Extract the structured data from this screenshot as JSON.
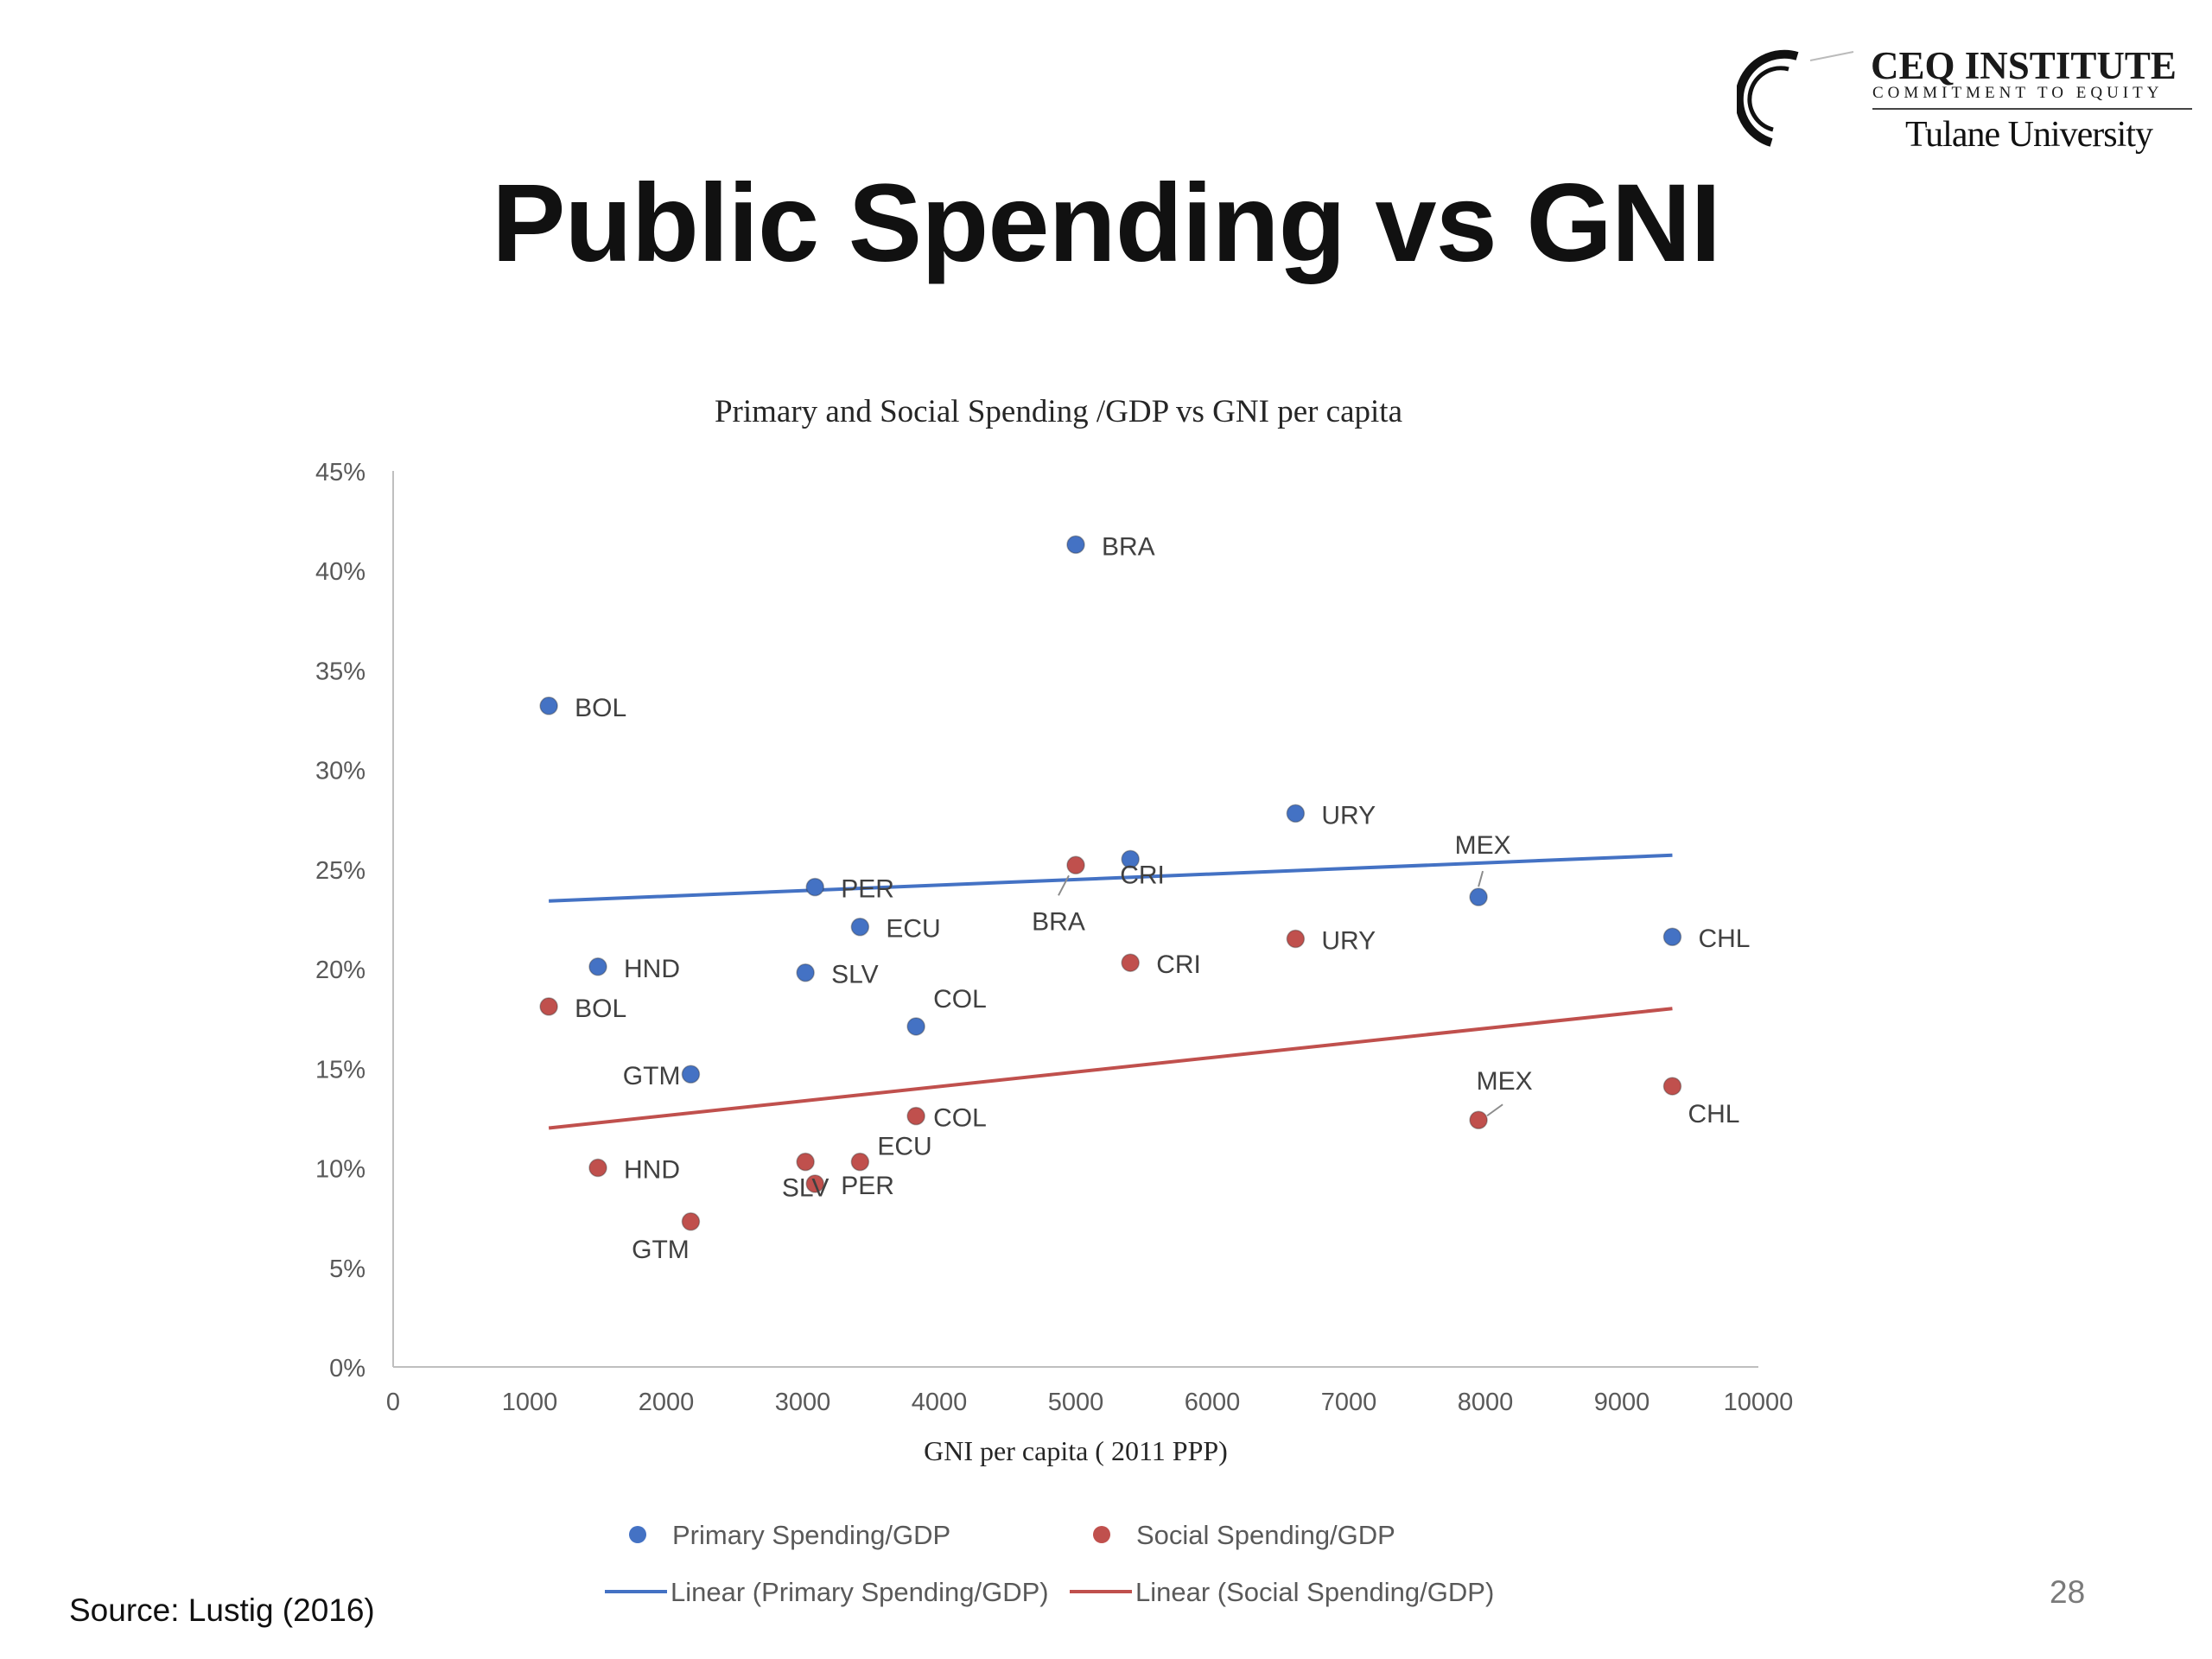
{
  "slide": {
    "title": "Public Spending vs GNI",
    "source": "Source: Lustig (2016)",
    "page_number": "28"
  },
  "logo": {
    "name": "CEQ INSTITUTE",
    "tagline": "COMMITMENT TO EQUITY",
    "university": "Tulane University"
  },
  "colors": {
    "primary": "#4472C4",
    "social": "#C0504D",
    "axis": "#BFBFBF",
    "tick_text": "#595959",
    "label_text": "#404040"
  },
  "chart_data": {
    "type": "scatter",
    "title": "Primary and Social Spending /GDP vs GNI per capita",
    "xlabel": "GNI per capita ( 2011 PPP)",
    "ylabel": "",
    "xlim": [
      0,
      10000
    ],
    "ylim": [
      0,
      0.45
    ],
    "x_ticks": [
      "0",
      "1000",
      "2000",
      "3000",
      "4000",
      "5000",
      "6000",
      "7000",
      "8000",
      "9000",
      "10000"
    ],
    "y_ticks": [
      "0%",
      "5%",
      "10%",
      "15%",
      "20%",
      "25%",
      "30%",
      "35%",
      "40%",
      "45%"
    ],
    "grid": false,
    "legend_position": "bottom",
    "series": [
      {
        "name": "Primary Spending/GDP",
        "points": [
          {
            "label": "BOL",
            "x": 1140,
            "y": 0.332
          },
          {
            "label": "HND",
            "x": 1500,
            "y": 0.201
          },
          {
            "label": "GTM",
            "x": 2180,
            "y": 0.147
          },
          {
            "label": "SLV",
            "x": 3020,
            "y": 0.198
          },
          {
            "label": "PER",
            "x": 3090,
            "y": 0.241
          },
          {
            "label": "ECU",
            "x": 3420,
            "y": 0.221
          },
          {
            "label": "COL",
            "x": 3830,
            "y": 0.171
          },
          {
            "label": "BRA",
            "x": 5000,
            "y": 0.413
          },
          {
            "label": "CRI",
            "x": 5400,
            "y": 0.255
          },
          {
            "label": "URY",
            "x": 6610,
            "y": 0.278
          },
          {
            "label": "MEX",
            "x": 7950,
            "y": 0.236
          },
          {
            "label": "CHL",
            "x": 9370,
            "y": 0.216
          }
        ]
      },
      {
        "name": "Social Spending/GDP",
        "points": [
          {
            "label": "BOL",
            "x": 1140,
            "y": 0.181
          },
          {
            "label": "HND",
            "x": 1500,
            "y": 0.1
          },
          {
            "label": "GTM",
            "x": 2180,
            "y": 0.073
          },
          {
            "label": "SLV",
            "x": 3020,
            "y": 0.103
          },
          {
            "label": "PER",
            "x": 3090,
            "y": 0.092
          },
          {
            "label": "ECU",
            "x": 3420,
            "y": 0.103
          },
          {
            "label": "COL",
            "x": 3830,
            "y": 0.126
          },
          {
            "label": "BRA",
            "x": 5000,
            "y": 0.252
          },
          {
            "label": "CRI",
            "x": 5400,
            "y": 0.203
          },
          {
            "label": "URY",
            "x": 6610,
            "y": 0.215
          },
          {
            "label": "MEX",
            "x": 7950,
            "y": 0.124
          },
          {
            "label": "CHL",
            "x": 9370,
            "y": 0.141
          }
        ]
      }
    ],
    "trendlines": [
      {
        "name": "Linear (Primary Spending/GDP)",
        "series": "Primary Spending/GDP",
        "x": [
          1140,
          9370
        ],
        "y": [
          0.234,
          0.257
        ]
      },
      {
        "name": "Linear (Social Spending/GDP)",
        "series": "Social Spending/GDP",
        "x": [
          1140,
          9370
        ],
        "y": [
          0.12,
          0.18
        ]
      }
    ]
  }
}
